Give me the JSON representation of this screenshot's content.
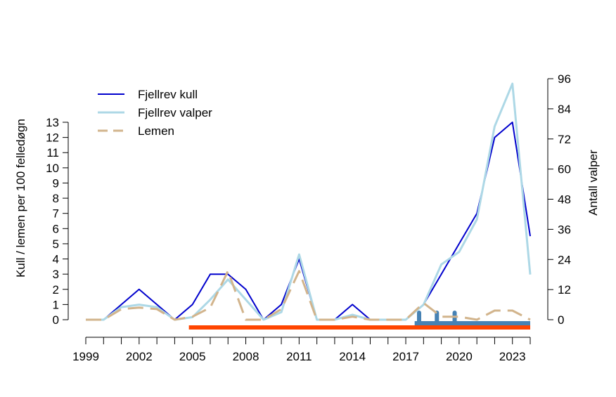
{
  "chart_data": {
    "type": "line",
    "x": [
      1999,
      2000,
      2001,
      2002,
      2003,
      2004,
      2005,
      2006,
      2007,
      2008,
      2009,
      2010,
      2011,
      2012,
      2013,
      2014,
      2015,
      2016,
      2017,
      2018,
      2019,
      2020,
      2021,
      2022,
      2023,
      2024
    ],
    "xticks": [
      1999,
      2002,
      2005,
      2008,
      2011,
      2014,
      2017,
      2020,
      2023
    ],
    "xlim": [
      1999,
      2024
    ],
    "ylabel_left": "Kull / lemen per 100 felledøgn",
    "ylabel_right": "Antall valper",
    "ylim_left": [
      0,
      13
    ],
    "yticks_left": [
      0,
      1,
      2,
      3,
      4,
      5,
      6,
      7,
      8,
      9,
      10,
      11,
      12,
      13
    ],
    "ylim_right": [
      0,
      96
    ],
    "yticks_right": [
      0,
      12,
      24,
      36,
      48,
      60,
      72,
      84,
      96
    ],
    "grid": false,
    "legend_position": "top-left",
    "series": [
      {
        "name": "Fjellrev kull",
        "axis": "left",
        "color": "#0000cd",
        "dash": "solid",
        "values": [
          0,
          0,
          1,
          2,
          1,
          0,
          1,
          3,
          3,
          2,
          0,
          1,
          4,
          0,
          0,
          1,
          0,
          0,
          0,
          1,
          3,
          5,
          7,
          12,
          13,
          5.5
        ]
      },
      {
        "name": "Fjellrev valper",
        "axis": "right",
        "color": "#add8e6",
        "dash": "solid",
        "values": [
          0,
          0,
          5,
          6,
          5,
          0,
          1,
          8,
          16,
          8,
          0,
          3,
          26,
          0,
          0,
          2,
          0,
          0,
          0,
          6,
          22,
          27,
          40,
          77,
          94,
          18
        ]
      },
      {
        "name": "Lemen",
        "axis": "left",
        "color": "#d2b48c",
        "dash": "dashed",
        "values": [
          0,
          0,
          0.7,
          0.8,
          0.7,
          0,
          0.2,
          0.8,
          3.2,
          0,
          0,
          0.7,
          3.2,
          0,
          0,
          0.2,
          0,
          0,
          0,
          1.1,
          0.2,
          0.2,
          0,
          0.6,
          0.6,
          0
        ]
      }
    ],
    "bars": [
      {
        "color": "#ff4500",
        "start": 2004.8,
        "end": 2024
      },
      {
        "color": "#4682b4",
        "start": 2017.5,
        "end": 2024
      }
    ],
    "bar_markers": {
      "color": "#4682b4",
      "x": [
        2017.75,
        2018.75,
        2019.75
      ]
    }
  }
}
